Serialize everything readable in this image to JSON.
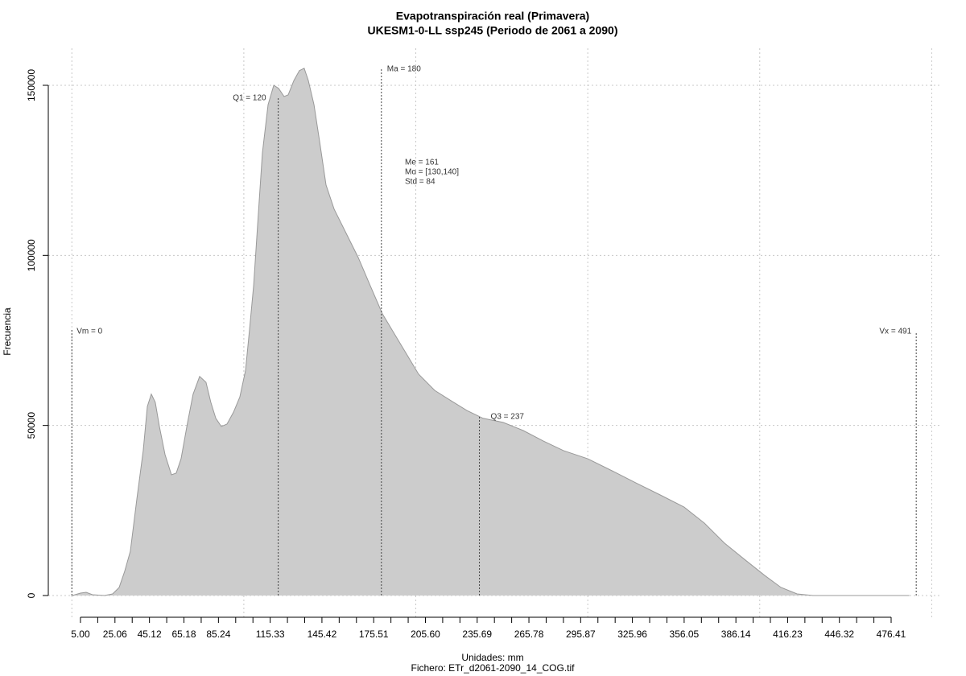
{
  "chart_data": {
    "type": "area",
    "title": "Evapotranspiración real (Primavera)",
    "subtitle": "UKESM1-0-LL ssp245 (Periodo de 2061 a 2090)",
    "xlabel": "Unidades: mm",
    "ylabel": "Frecuencia",
    "caption": "Fichero: ETr_d2061-2090_14_COG.tif",
    "color": "#cccccc",
    "line_color": "#999999",
    "x": [
      0.3,
      5,
      8.3,
      12,
      19,
      23.7,
      27.5,
      30.7,
      34,
      37.8,
      41.5,
      43.9,
      46.2,
      48.5,
      50.9,
      54.2,
      57.9,
      60.7,
      63.5,
      67.3,
      70.5,
      74.3,
      78,
      80.8,
      83.7,
      86.9,
      90.2,
      94,
      97.7,
      101,
      103.3,
      105.7,
      108,
      110.8,
      114.1,
      117.4,
      120.2,
      123.4,
      125.8,
      129.1,
      132.3,
      135.1,
      137.5,
      140.8,
      144,
      147.8,
      152.5,
      159.5,
      166.5,
      173.5,
      180.6,
      187.6,
      194.6,
      201.6,
      211,
      220.4,
      229.7,
      239.1,
      250.8,
      262.5,
      274.2,
      285.9,
      300,
      314,
      328,
      342,
      356,
      367.8,
      379.5,
      391.2,
      402.9,
      412.3,
      421.7,
      431,
      487
    ],
    "values": [
      0,
      700,
      950,
      240,
      0,
      470,
      2370,
      7100,
      13000,
      28400,
      42600,
      55600,
      59200,
      56800,
      49700,
      41400,
      35500,
      36000,
      40200,
      50900,
      59200,
      64400,
      62700,
      56800,
      52100,
      49700,
      50400,
      53900,
      58400,
      66200,
      78100,
      91100,
      108800,
      130100,
      144300,
      150000,
      149100,
      146700,
      147200,
      151400,
      154300,
      155000,
      151400,
      144300,
      133700,
      120700,
      113600,
      106500,
      99400,
      91100,
      82800,
      76900,
      71000,
      65100,
      60300,
      57300,
      54400,
      52100,
      50900,
      48500,
      45400,
      42600,
      40200,
      36700,
      33100,
      29600,
      26000,
      21300,
      15400,
      10600,
      5900,
      2400,
      470,
      0,
      0
    ],
    "xlim": [
      -13.7,
      505.9
    ],
    "ylim": [
      -6390,
      160880
    ],
    "xticks": [
      {
        "value": 5,
        "label": "5.00"
      },
      {
        "value": 25.06,
        "label": "25.06"
      },
      {
        "value": 45.12,
        "label": "45.12"
      },
      {
        "value": 65.18,
        "label": "65.18"
      },
      {
        "value": 85.24,
        "label": "85.24"
      },
      {
        "value": 115.33,
        "label": "115.33"
      },
      {
        "value": 145.42,
        "label": "145.42"
      },
      {
        "value": 175.51,
        "label": "175.51"
      },
      {
        "value": 205.6,
        "label": "205.60"
      },
      {
        "value": 235.69,
        "label": "235.69"
      },
      {
        "value": 265.78,
        "label": "265.78"
      },
      {
        "value": 295.87,
        "label": "295.87"
      },
      {
        "value": 325.96,
        "label": "325.96"
      },
      {
        "value": 356.05,
        "label": "356.05"
      },
      {
        "value": 386.14,
        "label": "386.14"
      },
      {
        "value": 416.23,
        "label": "416.23"
      },
      {
        "value": 446.32,
        "label": "446.32"
      },
      {
        "value": 476.41,
        "label": "476.41"
      }
    ],
    "xminorticks": [
      15.03,
      35.09,
      55.15,
      75.21,
      95.27,
      105.3,
      125.36,
      135.39,
      155.45,
      165.48,
      185.54,
      195.57,
      215.63,
      225.66,
      245.72,
      255.75,
      275.81,
      285.84,
      305.9,
      315.93,
      335.99,
      346.02,
      366.08,
      376.11,
      396.17,
      406.2,
      426.26,
      436.29,
      456.35,
      466.38
    ],
    "xgrid": [
      0,
      100,
      200,
      300,
      400,
      500
    ],
    "yticks": [
      0,
      50000,
      100000,
      150000
    ],
    "grid": true,
    "markers": [
      {
        "label": "Vm = 0",
        "value": 0
      },
      {
        "label": "Q1 = 120",
        "value": 120
      },
      {
        "label": "Ma = 180",
        "value": 180
      },
      {
        "label": "Q3 = 237",
        "value": 237
      },
      {
        "label": "Vx = 491",
        "value": 491
      }
    ],
    "stats": [
      "Me = 161",
      "Mo = [130,140]",
      "Std = 84"
    ]
  }
}
